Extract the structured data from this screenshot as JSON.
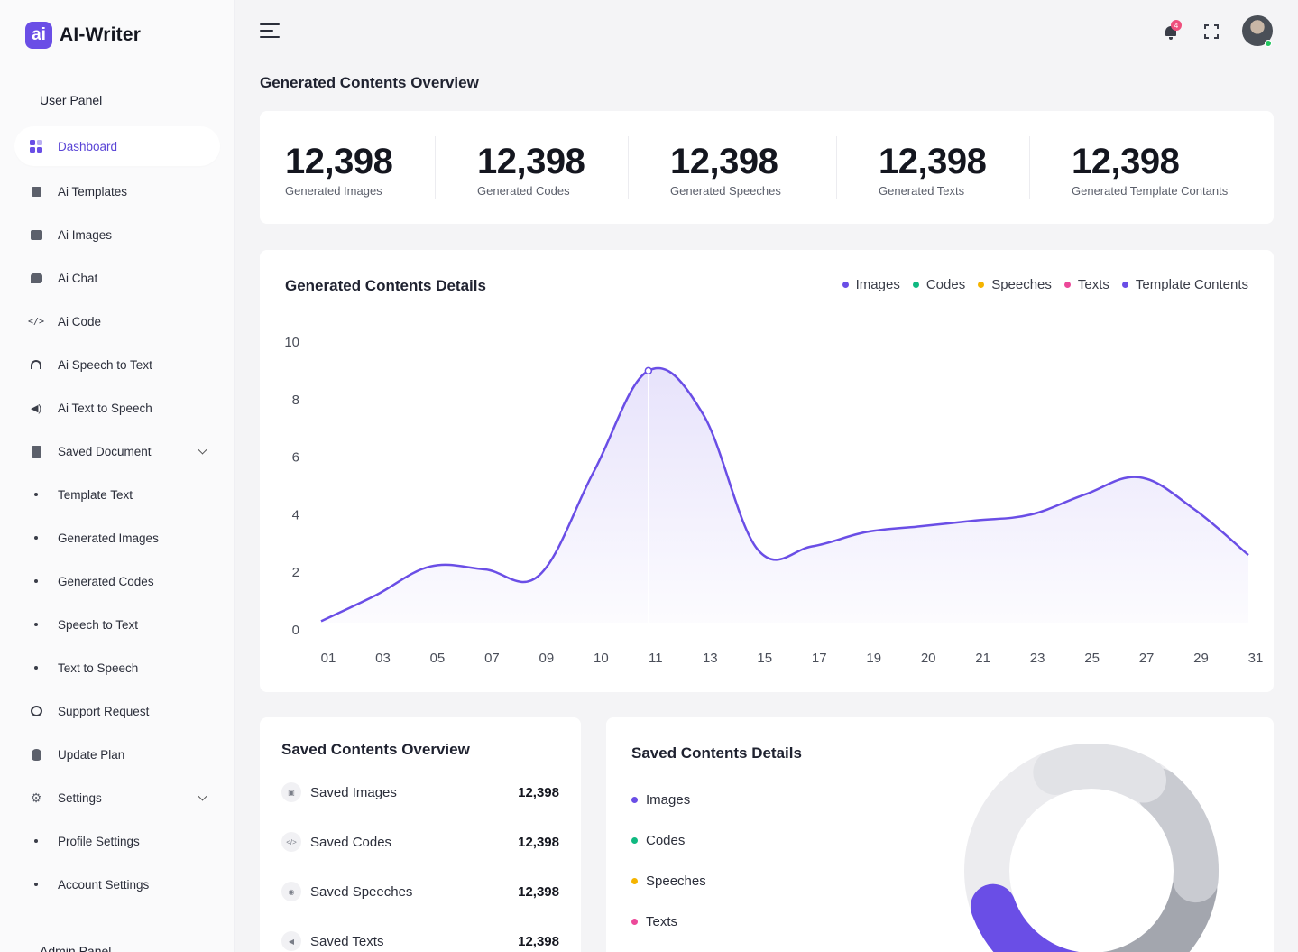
{
  "brand": {
    "logo_letter": "ai",
    "name": "AI-Writer"
  },
  "sidebar": {
    "section_user": "User Panel",
    "section_admin": "Admin Panel",
    "items": [
      {
        "label": "Dashboard",
        "icon": "dashboard-icon",
        "active": true
      },
      {
        "label": "Ai Templates",
        "icon": "ai-templates-icon"
      },
      {
        "label": "Ai Images",
        "icon": "image-icon"
      },
      {
        "label": "Ai Chat",
        "icon": "chat-icon"
      },
      {
        "label": "Ai Code",
        "icon": "code-icon"
      },
      {
        "label": "Ai Speech to Text",
        "icon": "headphones-icon"
      },
      {
        "label": "Ai Text to Speech",
        "icon": "speaker-icon"
      },
      {
        "label": "Saved Document",
        "icon": "document-icon",
        "expandable": true
      },
      {
        "label": "Template Text",
        "sub": true
      },
      {
        "label": "Generated Images",
        "sub": true
      },
      {
        "label": "Generated Codes",
        "sub": true
      },
      {
        "label": "Speech to Text",
        "sub": true
      },
      {
        "label": "Text to Speech",
        "sub": true
      },
      {
        "label": "Support Request",
        "icon": "support-icon"
      },
      {
        "label": "Update Plan",
        "icon": "money-bag-icon"
      },
      {
        "label": "Settings",
        "icon": "gear-icon",
        "expandable": true
      },
      {
        "label": "Profile Settings",
        "sub": true
      },
      {
        "label": "Account Settings",
        "sub": true
      }
    ]
  },
  "header": {
    "notification_count": "4"
  },
  "overview": {
    "title": "Generated Contents Overview",
    "stats": [
      {
        "value": "12,398",
        "label": "Generated Images"
      },
      {
        "value": "12,398",
        "label": "Generated Codes"
      },
      {
        "value": "12,398",
        "label": "Generated Speeches"
      },
      {
        "value": "12,398",
        "label": "Generated Texts"
      },
      {
        "value": "12,398",
        "label": "Generated Template Contants"
      }
    ]
  },
  "details": {
    "title": "Generated Contents Details",
    "legend": [
      {
        "label": "Images",
        "color": "#6a4ee6"
      },
      {
        "label": "Codes",
        "color": "#10b981"
      },
      {
        "label": "Speeches",
        "color": "#f5b400"
      },
      {
        "label": "Texts",
        "color": "#ec4899"
      },
      {
        "label": "Template Contents",
        "color": "#6a4ee6"
      }
    ]
  },
  "chart_data": {
    "type": "area",
    "categories": [
      "01",
      "03",
      "05",
      "07",
      "09",
      "10",
      "11",
      "13",
      "15",
      "17",
      "19",
      "20",
      "21",
      "23",
      "25",
      "27",
      "29",
      "31"
    ],
    "series": [
      {
        "values": [
          0.3,
          1.2,
          2.2,
          2.1,
          1.9,
          5.5,
          9.0,
          7.5,
          2.8,
          2.9,
          3.4,
          3.6,
          3.8,
          4.0,
          4.7,
          5.3,
          4.2,
          2.6
        ],
        "color": "#6a4ee6"
      }
    ],
    "highlight_index": 6,
    "ylim": [
      0,
      10
    ],
    "yticks": [
      0,
      2,
      4,
      6,
      8,
      10
    ],
    "grid": false,
    "legend_position": "top-right"
  },
  "saved_overview": {
    "title": "Saved Contents Overview",
    "rows": [
      {
        "label": "Saved Images",
        "value": "12,398",
        "icon": "image-icon"
      },
      {
        "label": "Saved Codes",
        "value": "12,398",
        "icon": "code-icon"
      },
      {
        "label": "Saved Speeches",
        "value": "12,398",
        "icon": "headphones-icon"
      },
      {
        "label": "Saved Texts",
        "value": "12,398",
        "icon": "speaker-icon"
      }
    ]
  },
  "saved_details": {
    "title": "Saved Contents Details",
    "legend": [
      {
        "label": "Images",
        "color": "#6a4ee6"
      },
      {
        "label": "Codes",
        "color": "#10b981"
      },
      {
        "label": "Speeches",
        "color": "#f5b400"
      },
      {
        "label": "Texts",
        "color": "#ec4899"
      }
    ],
    "donut_colors": [
      "#ececef",
      "#e1e2e6",
      "#c9cbd1",
      "#a3a6ae",
      "#6a4ee6"
    ]
  }
}
